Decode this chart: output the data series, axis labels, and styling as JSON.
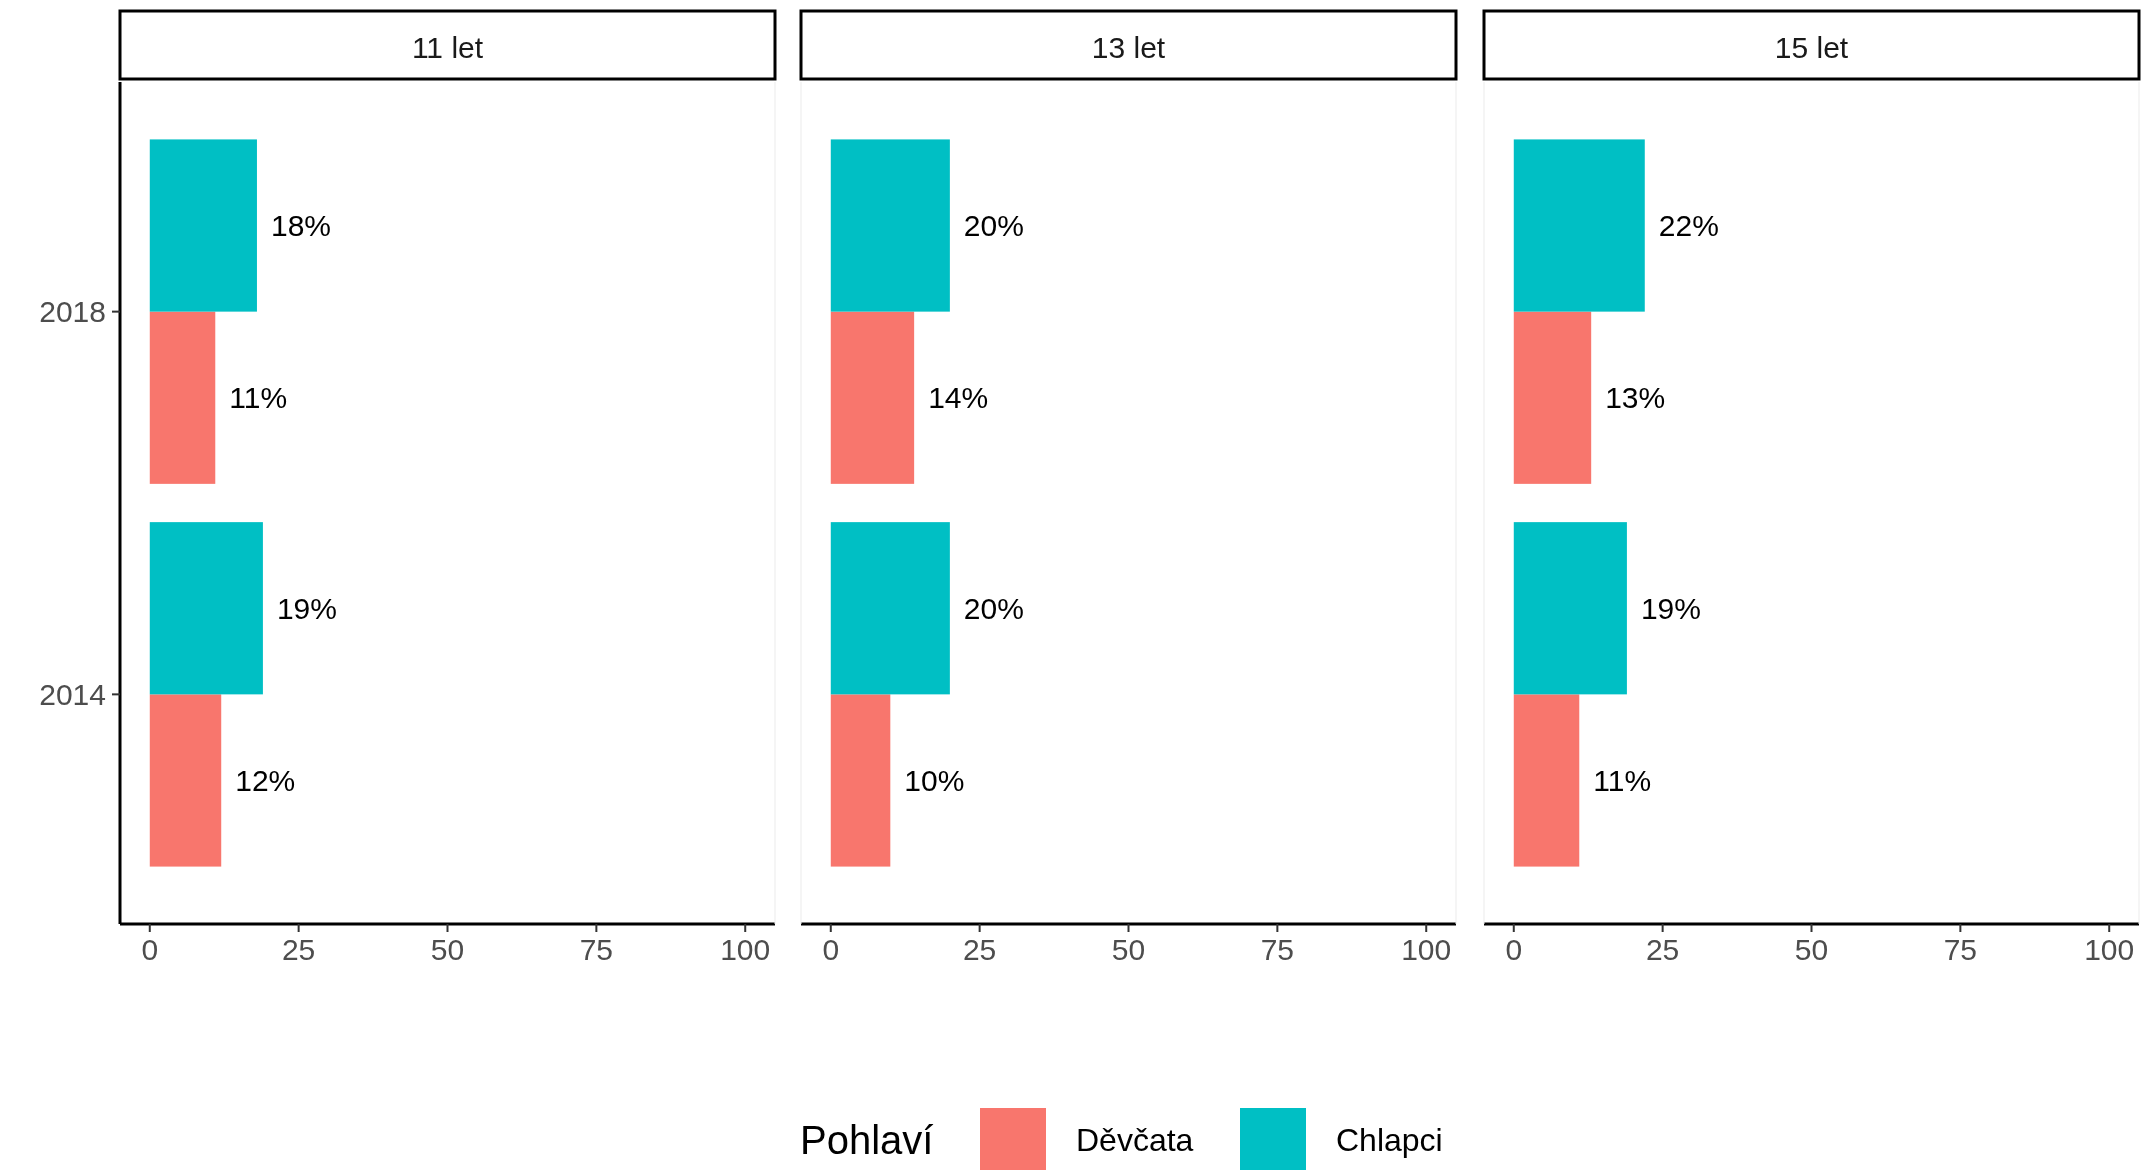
{
  "chart_data": [
    {
      "type": "bar",
      "orientation": "horizontal",
      "title": "11 let",
      "categories": [
        "2018",
        "2014"
      ],
      "xlim": [
        -5,
        105
      ],
      "xticks": [
        0,
        25,
        50,
        75,
        100
      ],
      "legend": "bottom",
      "legend_title": "Pohlaví",
      "series": [
        {
          "name": "Děvčata",
          "color": "#f8766d",
          "values": [
            11,
            12
          ],
          "value_labels": [
            "11%",
            "12%"
          ]
        },
        {
          "name": "Chlapci",
          "color": "#00bfc4",
          "values": [
            18,
            19
          ],
          "value_labels": [
            "18%",
            "19%"
          ]
        }
      ]
    },
    {
      "type": "bar",
      "orientation": "horizontal",
      "title": "13 let",
      "categories": [
        "2018",
        "2014"
      ],
      "xlim": [
        -5,
        105
      ],
      "xticks": [
        0,
        25,
        50,
        75,
        100
      ],
      "tick_labels": "x",
      "series": [
        {
          "color": "#f8766d",
          "values": [
            14,
            10
          ],
          "value_labels": [
            "14%",
            "10%"
          ]
        },
        {
          "color": "#00bfc4",
          "values": [
            20,
            20
          ],
          "value_labels": [
            "20%",
            "20%"
          ]
        }
      ]
    },
    {
      "type": "bar",
      "orientation": "horizontal",
      "title": "15 let",
      "categories": [
        "2018",
        "2014"
      ],
      "xlim": [
        -5,
        105
      ],
      "xticks": [
        0,
        25,
        50,
        75,
        100
      ],
      "tick_labels": "x",
      "series": [
        {
          "color": "#f8766d",
          "values": [
            13,
            11
          ],
          "value_labels": [
            "13%",
            "11%"
          ]
        },
        {
          "color": "#00bfc4",
          "values": [
            22,
            19
          ],
          "value_labels": [
            "22%",
            "19%"
          ]
        }
      ]
    }
  ]
}
